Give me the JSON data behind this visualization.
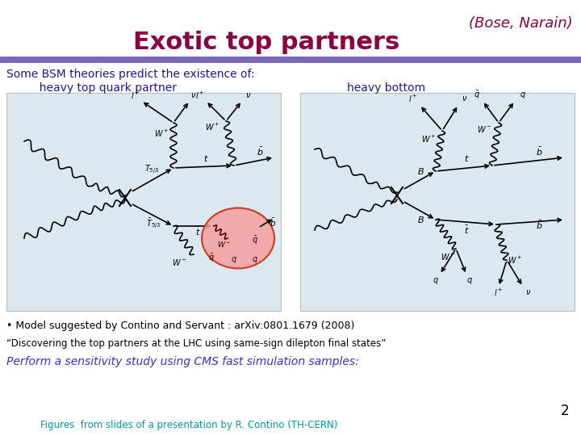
{
  "title": "Exotic top partners",
  "title_color": "#8B0040",
  "bose_narain": "(Bose, Narain)",
  "bose_narain_color": "#8B0040",
  "bar_color": "#7B68BB",
  "line1": "Some BSM theories predict the existence of:",
  "line1_color": "#1a1a8c",
  "label_left": "  heavy top quark partner",
  "label_right": "heavy bottom",
  "label_color": "#1a1a8c",
  "bullet_line1": "• Model suggested by Contino and Servant : arXiv:0801.1679 (2008)",
  "bullet_line2": "“Discovering the top partners at the LHC using same-sign dilepton final states”",
  "bullet_line3": "Perform a sensitivity study using CMS fast simulation samples:",
  "bullet_color1": "#000000",
  "bullet_color3": "#3333cc",
  "footnote": "Figures  from slides of a presentation by R. Contino (TH-CERN)",
  "footnote_color": "#009999",
  "page_number": "2",
  "bg_color": "#ffffff"
}
